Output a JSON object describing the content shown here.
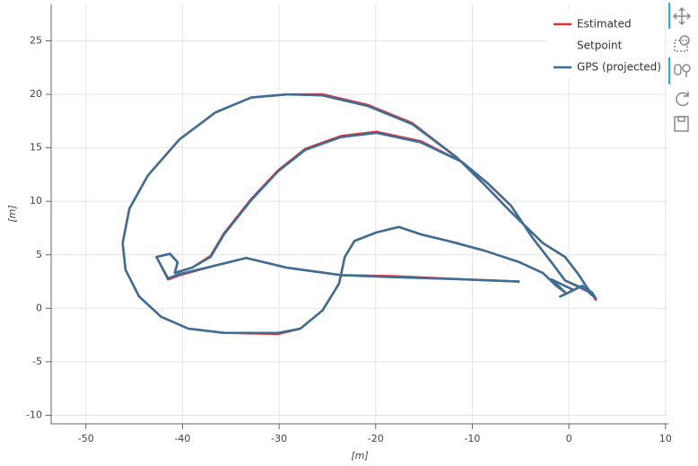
{
  "chart_data": {
    "type": "line",
    "xlabel": "[m]",
    "ylabel": "[m]",
    "xlim": [
      -53.6,
      10.3
    ],
    "ylim": [
      -10.8,
      28.4
    ],
    "xticks": [
      -50,
      -40,
      -30,
      -20,
      -10,
      0,
      10
    ],
    "yticks": [
      -10,
      -5,
      0,
      5,
      10,
      15,
      20,
      25
    ],
    "grid": true,
    "legend": "top-right",
    "series": [
      {
        "name": "Estimated",
        "color": "#e0303e",
        "x": [
          -5.1,
          -10.6,
          -18.1,
          -23.6,
          -29.2,
          -33.4,
          -36.6,
          -40.3,
          -41.5,
          -42.7,
          -41.3,
          -40.5,
          -40.8,
          -39.0,
          -37.1,
          -35.7,
          -32.9,
          -30.1,
          -27.3,
          -23.6,
          -19.9,
          -15.3,
          -11.1,
          -8.3,
          -6.0,
          -3.7,
          -1.8,
          -0.4,
          2.4,
          2.8,
          1.9,
          0.97,
          -0.4,
          -2.7,
          -6.0,
          -8.8,
          -11.6,
          -16.2,
          -20.8,
          -25.5,
          -29.2,
          -32.9,
          -36.6,
          -40.3,
          -43.6,
          -45.5,
          -46.2,
          -45.9,
          -44.5,
          -42.2,
          -39.4,
          -35.7,
          -30.1,
          -27.8,
          -25.5,
          -23.8,
          -23.2,
          -22.2,
          -19.9,
          -17.6,
          -15.3,
          -12.5,
          -8.8,
          -5.1,
          -2.7,
          -1.3,
          -0.4,
          -1.8,
          0.5,
          -0.9,
          1.4,
          2.4
        ],
        "values": [
          2.5,
          2.7,
          3.0,
          3.1,
          3.8,
          4.7,
          4.0,
          3.1,
          2.7,
          4.8,
          5.1,
          4.3,
          3.3,
          3.8,
          4.9,
          7.0,
          10.2,
          12.9,
          14.9,
          16.1,
          16.5,
          15.6,
          13.7,
          11.6,
          9.6,
          6.5,
          4.3,
          2.6,
          1.4,
          0.8,
          1.9,
          3.2,
          4.8,
          6.1,
          9.0,
          11.6,
          14.1,
          17.3,
          19.0,
          20.0,
          20.0,
          19.7,
          18.3,
          15.8,
          12.4,
          9.3,
          6.1,
          3.6,
          1.1,
          -0.8,
          -1.9,
          -2.3,
          -2.4,
          -1.9,
          -0.2,
          2.3,
          4.8,
          6.3,
          7.1,
          7.6,
          6.9,
          6.3,
          5.4,
          4.3,
          3.3,
          2.1,
          1.5,
          2.7,
          1.7,
          1.1,
          2.1,
          1.2
        ]
      },
      {
        "name": "Setpoint",
        "x": [],
        "values": []
      },
      {
        "name": "GPS (projected)",
        "color": "#3a6f96",
        "x": [
          -5.1,
          -10.6,
          -18.1,
          -23.6,
          -29.2,
          -33.4,
          -36.6,
          -40.3,
          -41.5,
          -42.7,
          -41.3,
          -40.5,
          -40.8,
          -39.0,
          -37.1,
          -35.7,
          -32.9,
          -30.1,
          -27.3,
          -23.6,
          -19.9,
          -15.3,
          -11.1,
          -8.3,
          -6.0,
          -3.7,
          -1.8,
          -0.4,
          2.4,
          2.8,
          1.9,
          0.97,
          -0.4,
          -2.7,
          -6.0,
          -8.8,
          -11.6,
          -16.2,
          -20.8,
          -25.5,
          -29.2,
          -32.9,
          -36.6,
          -40.3,
          -43.6,
          -45.5,
          -46.2,
          -45.9,
          -44.5,
          -42.2,
          -39.4,
          -35.7,
          -30.1,
          -27.8,
          -25.5,
          -23.8,
          -23.2,
          -22.2,
          -19.9,
          -17.6,
          -15.3,
          -12.5,
          -8.8,
          -5.1,
          -2.7,
          -1.3,
          -0.4,
          -1.8,
          0.5,
          -0.9,
          1.4,
          2.4
        ],
        "values": [
          2.5,
          2.7,
          2.9,
          3.1,
          3.8,
          4.7,
          4.0,
          3.2,
          2.8,
          4.8,
          5.1,
          4.3,
          3.3,
          3.8,
          4.8,
          6.9,
          10.1,
          12.8,
          14.8,
          16.0,
          16.4,
          15.5,
          13.7,
          11.6,
          9.6,
          6.5,
          4.3,
          2.6,
          1.5,
          0.9,
          1.9,
          3.2,
          4.8,
          6.1,
          9.0,
          11.6,
          14.1,
          17.2,
          18.9,
          19.9,
          20.0,
          19.7,
          18.3,
          15.8,
          12.4,
          9.3,
          6.1,
          3.6,
          1.1,
          -0.8,
          -1.9,
          -2.3,
          -2.3,
          -1.9,
          -0.2,
          2.3,
          4.8,
          6.3,
          7.1,
          7.6,
          6.9,
          6.3,
          5.4,
          4.3,
          3.3,
          2.1,
          1.5,
          2.7,
          1.7,
          1.1,
          2.1,
          1.2
        ]
      }
    ]
  }
}
